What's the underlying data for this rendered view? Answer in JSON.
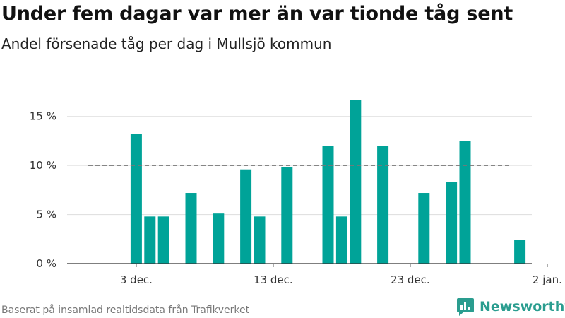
{
  "title": "Under fem dagar var mer än var tionde tåg sent",
  "subtitle": "Andel försenade tåg per dag i Mullsjö kommun",
  "source": "Baserat på insamlad realtidsdata från Trafikverket",
  "logo_text": "Newsworthy",
  "colors": {
    "bar": "#00a398",
    "grid": "#dddddd",
    "reference": "#777777",
    "axis": "#333333",
    "logo": "#2a9d8f"
  },
  "chart_data": {
    "type": "bar",
    "x": [
      "2 dec.",
      "3 dec.",
      "4 dec.",
      "5 dec.",
      "6 dec.",
      "7 dec.",
      "8 dec.",
      "9 dec.",
      "10 dec.",
      "11 dec.",
      "12 dec.",
      "13 dec.",
      "14 dec.",
      "15 dec.",
      "16 dec.",
      "17 dec.",
      "18 dec.",
      "19 dec.",
      "20 dec.",
      "21 dec.",
      "22 dec.",
      "23 dec.",
      "24 dec.",
      "25 dec.",
      "26 dec.",
      "27 dec.",
      "28 dec.",
      "29 dec.",
      "30 dec.",
      "31 dec.",
      "1 jan."
    ],
    "values": [
      null,
      13.2,
      4.8,
      4.8,
      null,
      7.2,
      null,
      5.1,
      null,
      9.6,
      4.8,
      null,
      9.8,
      null,
      null,
      12.0,
      4.8,
      16.7,
      null,
      12.0,
      null,
      null,
      7.2,
      null,
      8.3,
      12.5,
      null,
      null,
      null,
      2.4,
      null
    ],
    "xticks": [
      "3 dec.",
      "13 dec.",
      "23 dec.",
      "2 jan."
    ],
    "ylim": [
      0,
      17.5
    ],
    "yticks": [
      0,
      5,
      10,
      15
    ],
    "ytick_labels": [
      "0 %",
      "5 %",
      "10 %",
      "15 %"
    ],
    "reference_line": 10,
    "grid": true
  }
}
